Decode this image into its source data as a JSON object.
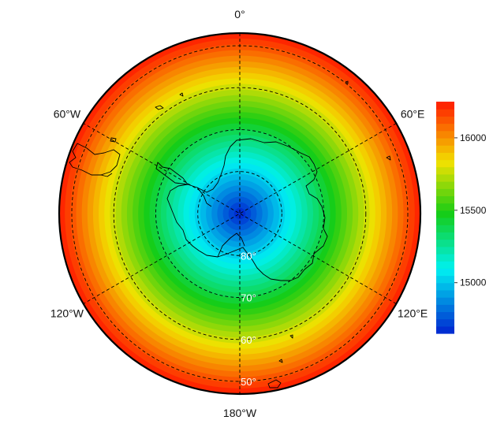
{
  "map": {
    "projection": "south-polar-stereographic",
    "fill": "rainbow-contours",
    "longitude_labels": [
      {
        "id": "lon-0",
        "text": "0°",
        "lon": 0
      },
      {
        "id": "lon-60e",
        "text": "60°E",
        "lon": 60
      },
      {
        "id": "lon-120e",
        "text": "120°E",
        "lon": 120
      },
      {
        "id": "lon-180w",
        "text": "180°W",
        "lon": 180
      },
      {
        "id": "lon-120w",
        "text": "120°W",
        "lon": -120
      },
      {
        "id": "lon-60w",
        "text": "60°W",
        "lon": -60
      }
    ],
    "latitude_labels": [
      {
        "id": "lat-80",
        "text": "80°",
        "lat": -80
      },
      {
        "id": "lat-70",
        "text": "70°",
        "lat": -70
      },
      {
        "id": "lat-60",
        "text": "60°",
        "lat": -60
      },
      {
        "id": "lat-50",
        "text": "50°",
        "lat": -50
      }
    ],
    "colors": {
      "low": "#0022d0",
      "cyan": "#00f2f2",
      "green": "#15cc15",
      "yellow": "#f2e200",
      "high": "#ff1a00",
      "coast": "#000000"
    }
  },
  "colorbar": {
    "min": 14650,
    "max": 16250,
    "levels": 32,
    "ticks": [
      {
        "value": 15000,
        "label": "15000"
      },
      {
        "value": 15500,
        "label": "15500"
      },
      {
        "value": 16000,
        "label": "16000"
      }
    ]
  }
}
